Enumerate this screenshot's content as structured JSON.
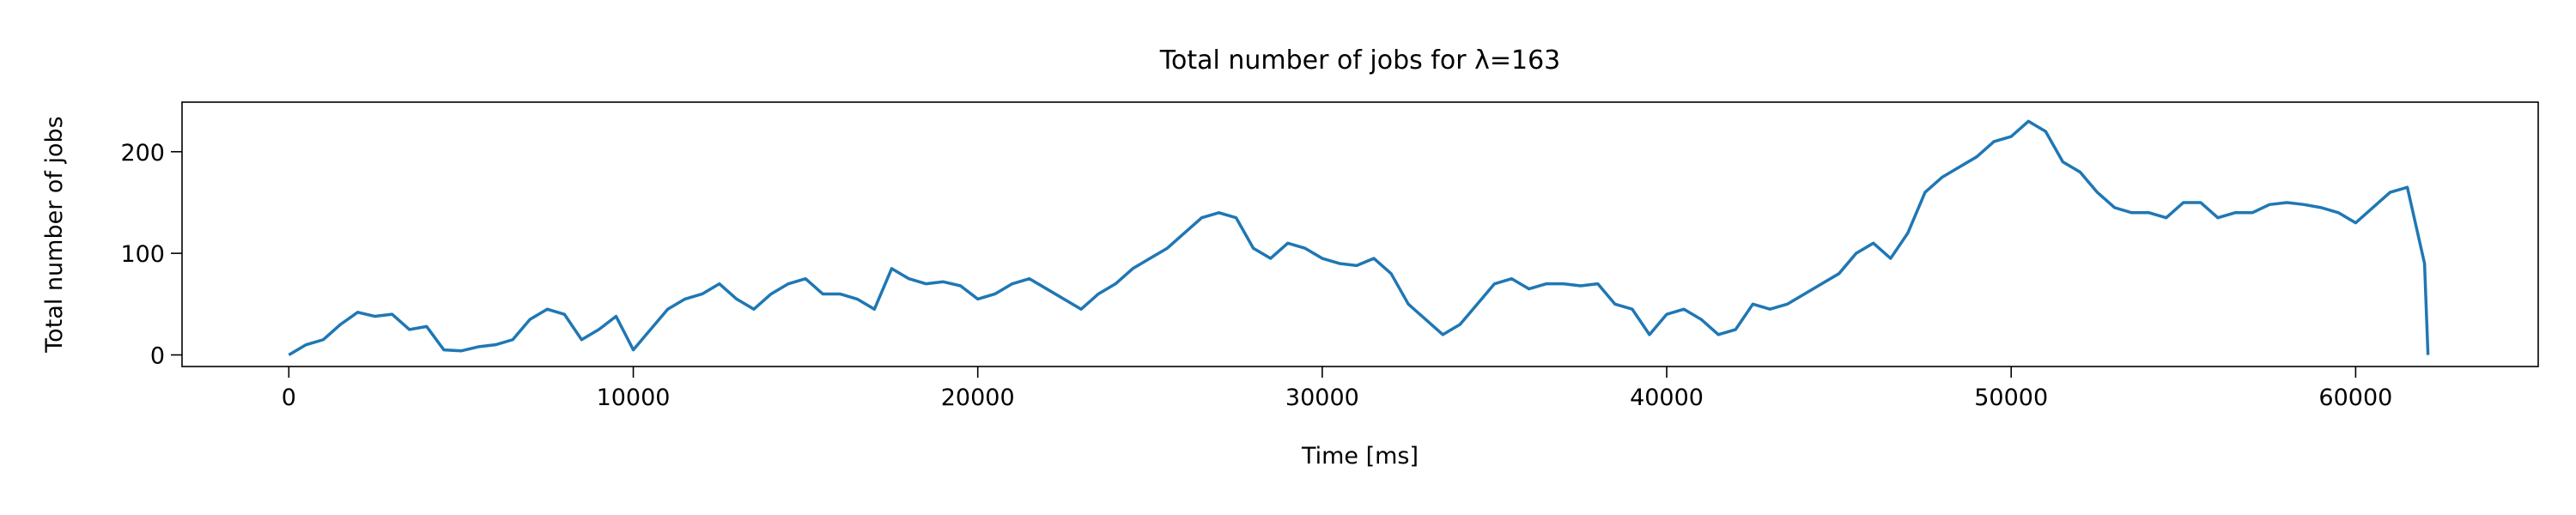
{
  "chart_data": {
    "type": "line",
    "title": "Total number of jobs for λ=163",
    "x_label": "Time [ms]",
    "y_label": "Total number of jobs",
    "x": [
      0,
      500,
      1000,
      1500,
      2000,
      2500,
      3000,
      3500,
      4000,
      4500,
      5000,
      5500,
      6000,
      6500,
      7000,
      7500,
      8000,
      8500,
      9000,
      9500,
      10000,
      10500,
      11000,
      11500,
      12000,
      12500,
      13000,
      13500,
      14000,
      14500,
      15000,
      15500,
      16000,
      16500,
      17000,
      17500,
      18000,
      18500,
      19000,
      19500,
      20000,
      20500,
      21000,
      21500,
      22000,
      22500,
      23000,
      23500,
      24000,
      24500,
      25000,
      25500,
      26000,
      26500,
      27000,
      27500,
      28000,
      28500,
      29000,
      29500,
      30000,
      30500,
      31000,
      31500,
      32000,
      32500,
      33000,
      33500,
      34000,
      34500,
      35000,
      35500,
      36000,
      36500,
      37000,
      37500,
      38000,
      38500,
      39000,
      39500,
      40000,
      40500,
      41000,
      41500,
      42000,
      42500,
      43000,
      43500,
      44000,
      44500,
      45000,
      45500,
      46000,
      46500,
      47000,
      47500,
      48000,
      48500,
      49000,
      49500,
      50000,
      50500,
      51000,
      51500,
      52000,
      52500,
      53000,
      53500,
      54000,
      54500,
      55000,
      55500,
      56000,
      56500,
      57000,
      57500,
      58000,
      58500,
      59000,
      59500,
      60000,
      60500,
      61000,
      61500,
      62000,
      62100
    ],
    "series": [
      {
        "name": "Total number of jobs",
        "color": "#1f77b4",
        "values": [
          0,
          10,
          15,
          30,
          42,
          38,
          40,
          25,
          28,
          5,
          4,
          8,
          10,
          15,
          35,
          45,
          40,
          15,
          25,
          38,
          5,
          25,
          45,
          55,
          60,
          70,
          55,
          45,
          60,
          70,
          75,
          60,
          60,
          55,
          45,
          85,
          75,
          70,
          72,
          68,
          55,
          60,
          70,
          75,
          65,
          55,
          45,
          60,
          70,
          85,
          95,
          105,
          120,
          135,
          140,
          135,
          105,
          95,
          110,
          105,
          95,
          90,
          88,
          95,
          80,
          50,
          35,
          20,
          30,
          50,
          70,
          75,
          65,
          70,
          70,
          68,
          70,
          50,
          45,
          20,
          40,
          45,
          35,
          20,
          25,
          50,
          45,
          50,
          60,
          70,
          80,
          100,
          110,
          95,
          120,
          160,
          175,
          185,
          195,
          210,
          215,
          230,
          220,
          190,
          180,
          160,
          145,
          140,
          140,
          135,
          150,
          150,
          135,
          140,
          140,
          148,
          150,
          148,
          145,
          140,
          130,
          145,
          160,
          165,
          90,
          0
        ]
      }
    ],
    "xlim": [
      -3100,
      65300
    ],
    "ylim": [
      -11.4,
      248.8
    ],
    "xticks": [
      0,
      10000,
      20000,
      30000,
      40000,
      50000,
      60000
    ],
    "yticks": [
      0,
      100,
      200
    ],
    "grid": false
  }
}
